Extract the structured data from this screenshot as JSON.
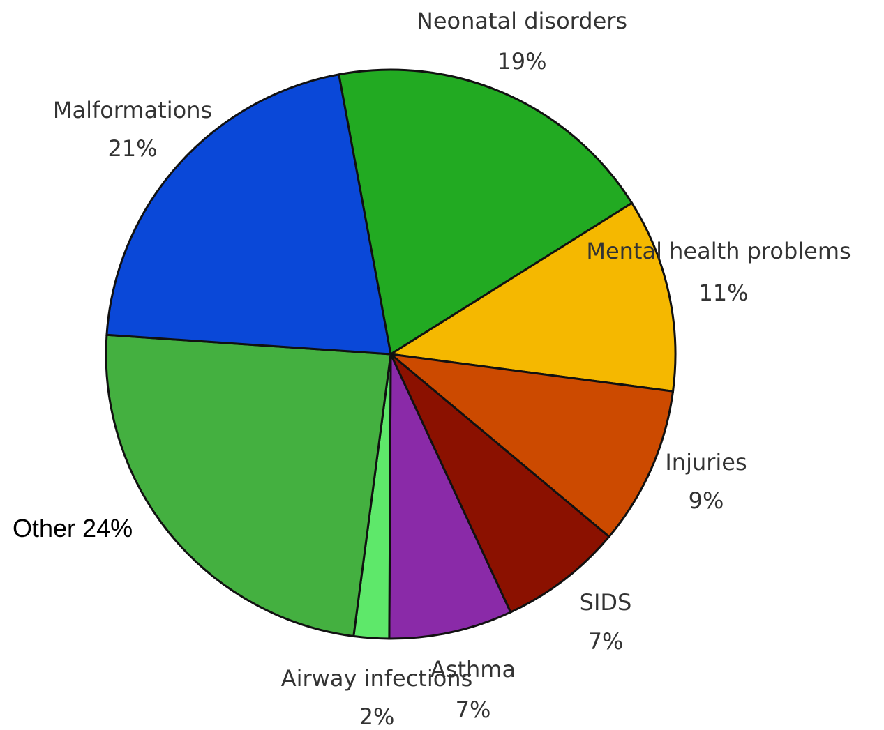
{
  "chart_data": {
    "type": "pie",
    "categories": [
      "Neonatal disorders",
      "Mental health problems",
      "Injuries",
      "SIDS",
      "Asthma",
      "Airway infections",
      "Other",
      "Malformations"
    ],
    "values": [
      19,
      11,
      9,
      7,
      7,
      2,
      24,
      21
    ],
    "value_labels": [
      "19%",
      "11%",
      "9%",
      "7%",
      "7%",
      "2%",
      "24%",
      "21%"
    ],
    "colors": [
      "#22aa22",
      "#f5b800",
      "#cc4a00",
      "#8b1100",
      "#8a2aa8",
      "#5ee86a",
      "#44b040",
      "#0a48d8"
    ]
  }
}
